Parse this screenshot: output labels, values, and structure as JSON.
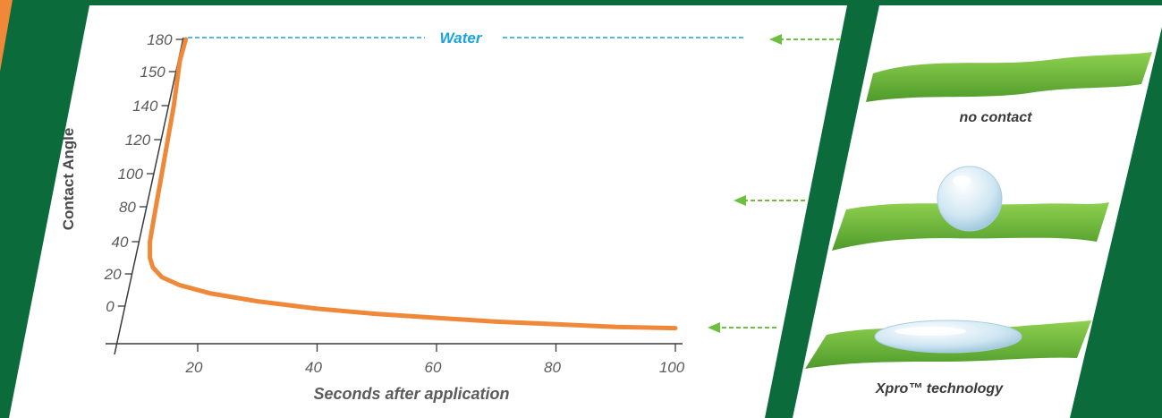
{
  "chart_data": {
    "type": "line",
    "xlabel": "Seconds after application",
    "ylabel": "Contact Angle",
    "y_ticks": [
      "180",
      "150",
      "140",
      "120",
      "100",
      "80",
      "40",
      "20",
      "0"
    ],
    "x_ticks": [
      "20",
      "40",
      "60",
      "80",
      "100"
    ],
    "series": [
      {
        "color": "#f0883a",
        "x": [
          18,
          17,
          16,
          15,
          14,
          13,
          12.5,
          12,
          12,
          12.5,
          14,
          17,
          22,
          30,
          40,
          50,
          60,
          70,
          80,
          90,
          100
        ],
        "y": [
          180,
          160,
          140,
          120,
          100,
          80,
          60,
          40,
          30,
          24,
          18,
          13,
          8,
          3,
          -2,
          -6,
          -9,
          -12,
          -14,
          -16,
          -17
        ]
      }
    ],
    "reference_line": {
      "label": "Water",
      "color": "#1aa3dc",
      "y": 180
    }
  },
  "illustrations": [
    {
      "caption": "no contact",
      "icon": "leaf-icon"
    },
    {
      "caption": "",
      "icon": "water-droplet-icon"
    },
    {
      "caption": "Xpro™ technology",
      "icon": "flat-droplet-icon"
    }
  ],
  "colors": {
    "background": "#0b6b3a",
    "curve": "#f0883a",
    "water": "#1aa3dc",
    "arrow": "#6cbf3f",
    "leaf": "#6cbf3f"
  }
}
